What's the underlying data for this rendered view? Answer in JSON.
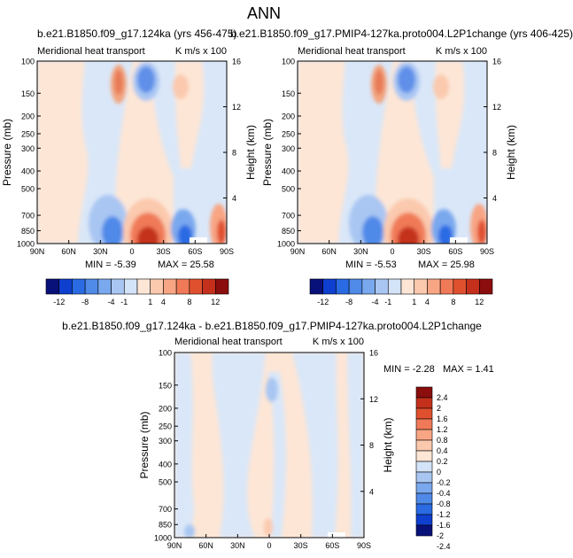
{
  "figure_title": "ANN",
  "panels": [
    {
      "title": "b.e21.B1850.f09_g17.124ka (yrs 456-475)",
      "left_label": "Meridional heat transport",
      "right_label": "K m/s x 100",
      "min_text": "MIN =  -5.39",
      "max_text": "MAX =  25.58"
    },
    {
      "title": "b.e21.B1850.f09_g17.PMIP4-127ka.proto004.L2P1change (yrs 406-425)",
      "left_label": "Meridional heat transport",
      "right_label": "K m/s x 100",
      "min_text": "MIN =  -5.53",
      "max_text": "MAX =  25.98"
    },
    {
      "title": "b.e21.B1850.f09_g17.124ka - b.e21.B1850.f09_g17.PMIP4-127ka.proto004.L2P1change",
      "left_label": "Meridional heat transport",
      "right_label": "K m/s x 100",
      "min_text": "MIN =  -2.28",
      "max_text": "MAX =   1.41"
    }
  ],
  "axes": {
    "ylabel": "Pressure (mb)",
    "y2label": "Height (km)",
    "xticks": [
      "90N",
      "60N",
      "30N",
      "0",
      "30S",
      "60S",
      "90S"
    ],
    "pressure_ticks": [
      "100",
      "150",
      "200",
      "250",
      "300",
      "400",
      "500",
      "700",
      "850",
      "1000"
    ],
    "height_ticks": [
      "16",
      "12",
      "8",
      "4"
    ]
  },
  "colorbar_top": {
    "labels": [
      "-12",
      "-8",
      "-4",
      "-1",
      "1",
      "4",
      "8",
      "12"
    ],
    "colors": [
      "#08107a",
      "#0e3fcf",
      "#2a6ae3",
      "#4f8ae8",
      "#7aa8ee",
      "#a9c6f3",
      "#d3e3f8",
      "#fde6d6",
      "#fbc9ad",
      "#f8a584",
      "#f07a58",
      "#e0502f",
      "#c4301b",
      "#8b0d0d"
    ]
  },
  "colorbar_diff": {
    "labels": [
      "2.4",
      "2",
      "1.6",
      "1.2",
      "0.8",
      "0.4",
      "0.2",
      "0",
      "-0.2",
      "-0.4",
      "-0.8",
      "-1.2",
      "-1.6",
      "-2",
      "-2.4"
    ],
    "colors": [
      "#8b0d0d",
      "#c4301b",
      "#e0502f",
      "#f07a58",
      "#f8a584",
      "#fbc9ad",
      "#fde6d6",
      "#d3e3f8",
      "#a9c6f3",
      "#7aa8ee",
      "#4f8ae8",
      "#2a6ae3",
      "#0e3fcf",
      "#08107a"
    ]
  },
  "chart_data": [
    {
      "type": "heatmap",
      "title": "b.e21.B1850.f09_g17.124ka (yrs 456-475)",
      "xlabel": "",
      "ylabel": "Pressure (mb)",
      "y2label": "Height (km)",
      "x_range": [
        90,
        -90
      ],
      "y_range_mb": [
        1000,
        100
      ],
      "log_scale_y": true,
      "min": -5.39,
      "max": 25.58,
      "features": [
        {
          "lat": 1,
          "p": 920,
          "value": 12,
          "kind": "max"
        },
        {
          "lat": 28,
          "p": 945,
          "value": -4,
          "kind": "min"
        },
        {
          "lat": -30,
          "p": 950,
          "value": -3,
          "kind": "min"
        },
        {
          "lat": -12,
          "p": 200,
          "value": -4,
          "kind": "min"
        },
        {
          "lat": 22,
          "p": 200,
          "value": 4,
          "kind": "max"
        },
        {
          "lat": -42,
          "p": 260,
          "value": 1,
          "kind": "max"
        },
        {
          "lat": -82,
          "p": 920,
          "value": 8,
          "kind": "max"
        }
      ]
    },
    {
      "type": "heatmap",
      "title": "b.e21.B1850.f09_g17.PMIP4-127ka.proto004.L2P1change (yrs 406-425)",
      "xlabel": "",
      "ylabel": "Pressure (mb)",
      "y2label": "Height (km)",
      "x_range": [
        90,
        -90
      ],
      "y_range_mb": [
        1000,
        100
      ],
      "log_scale_y": true,
      "min": -5.53,
      "max": 25.98,
      "features": [
        {
          "lat": 1,
          "p": 920,
          "value": 12,
          "kind": "max"
        },
        {
          "lat": 28,
          "p": 945,
          "value": -4,
          "kind": "min"
        },
        {
          "lat": -30,
          "p": 950,
          "value": -3,
          "kind": "min"
        },
        {
          "lat": -12,
          "p": 200,
          "value": -4,
          "kind": "min"
        },
        {
          "lat": 22,
          "p": 200,
          "value": 4,
          "kind": "max"
        },
        {
          "lat": -42,
          "p": 260,
          "value": 1,
          "kind": "max"
        },
        {
          "lat": -82,
          "p": 920,
          "value": 8,
          "kind": "max"
        }
      ]
    },
    {
      "type": "heatmap",
      "title": "b.e21.B1850.f09_g17.124ka - b.e21.B1850.f09_g17.PMIP4-127ka.proto004.L2P1change",
      "xlabel": "",
      "ylabel": "Pressure (mb)",
      "y2label": "Height (km)",
      "x_range": [
        90,
        -90
      ],
      "y_range_mb": [
        1000,
        100
      ],
      "log_scale_y": true,
      "min": -2.28,
      "max": 1.41,
      "features": [
        {
          "lat": 0,
          "p": 320,
          "value": -0.4,
          "kind": "min"
        },
        {
          "lat": 2,
          "p": 960,
          "value": 0.4,
          "kind": "max"
        },
        {
          "lat": -20,
          "p": 700,
          "value": 0.2,
          "kind": "max"
        },
        {
          "lat": 70,
          "p": 700,
          "value": -0.2,
          "kind": "min"
        }
      ]
    }
  ]
}
